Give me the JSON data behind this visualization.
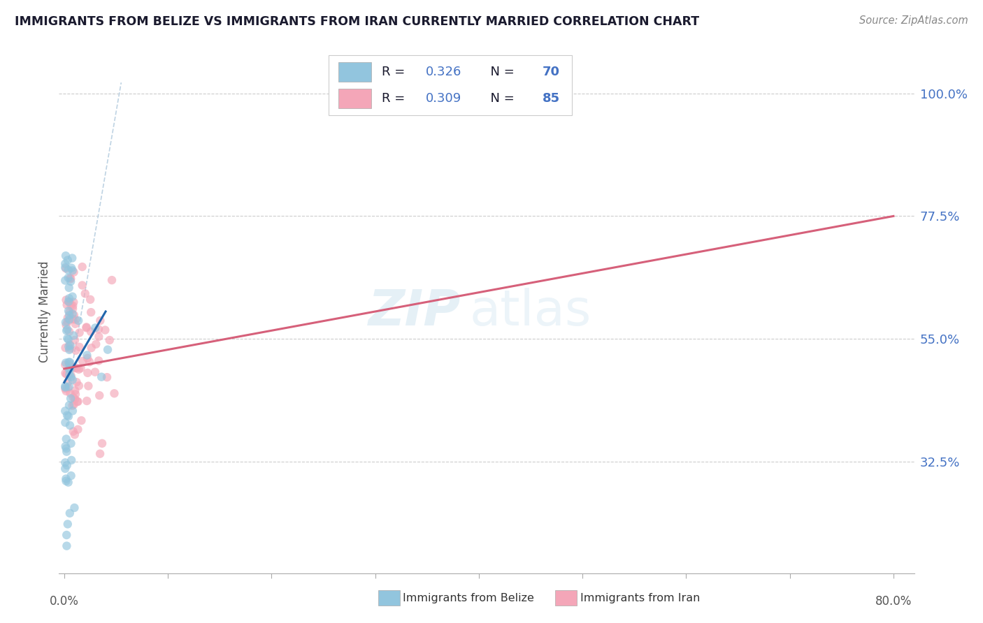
{
  "title": "IMMIGRANTS FROM BELIZE VS IMMIGRANTS FROM IRAN CURRENTLY MARRIED CORRELATION CHART",
  "source": "Source: ZipAtlas.com",
  "ylabel": "Currently Married",
  "ytick_labels": [
    "100.0%",
    "77.5%",
    "55.0%",
    "32.5%"
  ],
  "ytick_values": [
    1.0,
    0.775,
    0.55,
    0.325
  ],
  "xlim": [
    -0.005,
    0.82
  ],
  "ylim": [
    0.12,
    1.08
  ],
  "r_belize": 0.326,
  "n_belize": 70,
  "r_iran": 0.309,
  "n_iran": 85,
  "color_belize": "#92c5de",
  "color_iran": "#f4a6b8",
  "color_belize_line": "#2166ac",
  "color_iran_line": "#d6607a",
  "color_diagonal": "#aec8dc",
  "watermark_zip": "ZIP",
  "watermark_atlas": "atlas",
  "legend_label_belize": "Immigrants from Belize",
  "legend_label_iran": "Immigrants from Iran",
  "legend_r_color": "#000000",
  "legend_val_color": "#4472c4",
  "iran_line_x": [
    0.0,
    0.8
  ],
  "iran_line_y": [
    0.495,
    0.775
  ],
  "belize_line_x": [
    0.0,
    0.04
  ],
  "belize_line_y": [
    0.47,
    0.6
  ],
  "diag_line_x": [
    0.005,
    0.055
  ],
  "diag_line_y": [
    0.47,
    1.02
  ]
}
